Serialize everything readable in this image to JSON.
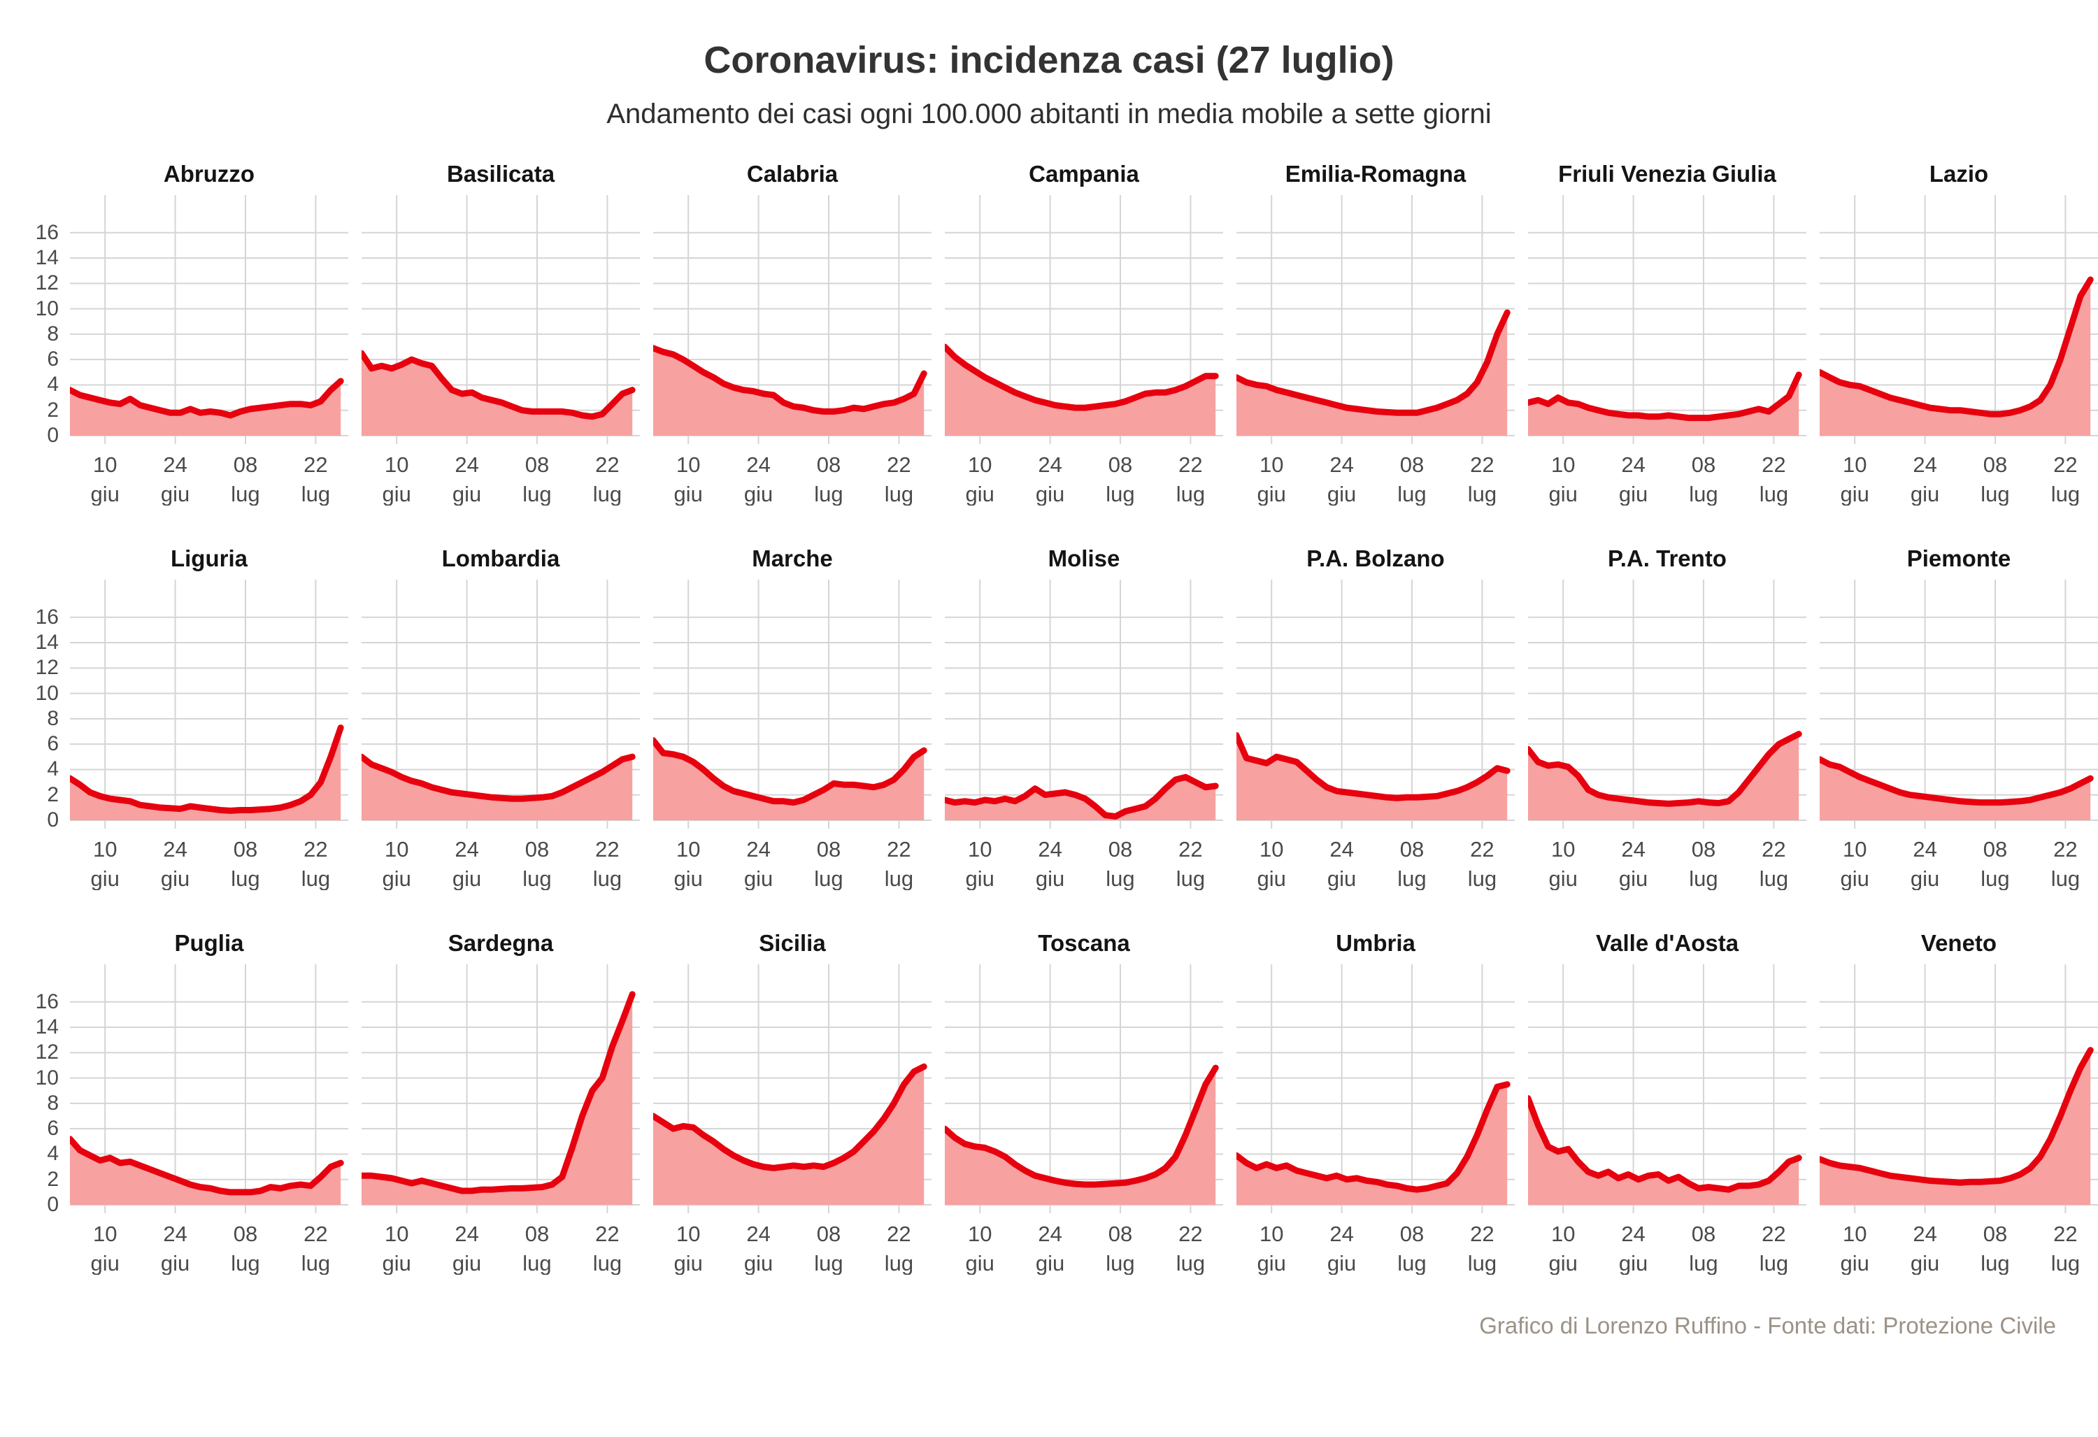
{
  "title": "Coronavirus: incidenza casi (27 luglio)",
  "subtitle": "Andamento dei casi ogni 100.000 abitanti in media mobile a sette giorni",
  "footer": "Grafico di Lorenzo Ruffino - Fonte dati: Protezione Civile",
  "colors": {
    "line": "#e7000e",
    "fill": "#f7a1a1",
    "grid": "#d5d5d5",
    "axis_text": "#4a4a4a",
    "footer_text": "#9b9286"
  },
  "chart_data": {
    "type": "area",
    "title": "Coronavirus: incidenza casi (27 luglio)",
    "subtitle": "Andamento dei casi ogni 100.000 abitanti in media mobile a sette giorni",
    "ylabel": "",
    "xlabel": "",
    "ylim": [
      0,
      17.2
    ],
    "xlim_days": [
      0,
      55.5
    ],
    "y_ticks": [
      0,
      2,
      4,
      6,
      8,
      10,
      12,
      14,
      16
    ],
    "x_ticks": [
      {
        "top": "10",
        "bottom": "giu",
        "day": 7
      },
      {
        "top": "24",
        "bottom": "giu",
        "day": 21
      },
      {
        "top": "08",
        "bottom": "lug",
        "day": 35
      },
      {
        "top": "22",
        "bottom": "lug",
        "day": 49
      }
    ],
    "x_start": "03 giu",
    "x_end": "27 lug",
    "sample_interval_days": 2,
    "grid": true,
    "legend": "none",
    "series": [
      {
        "name": "Abruzzo",
        "values": [
          3.6,
          3.2,
          3.0,
          2.8,
          2.6,
          2.5,
          2.9,
          2.4,
          2.2,
          2.0,
          1.8,
          1.8,
          2.1,
          1.8,
          1.9,
          1.8,
          1.6,
          1.9,
          2.1,
          2.2,
          2.3,
          2.4,
          2.5,
          2.5,
          2.4,
          2.7,
          3.6,
          4.3
        ]
      },
      {
        "name": "Basilicata",
        "values": [
          6.5,
          5.3,
          5.5,
          5.3,
          5.6,
          6.0,
          5.7,
          5.5,
          4.5,
          3.6,
          3.3,
          3.4,
          3.0,
          2.8,
          2.6,
          2.3,
          2.0,
          1.9,
          1.9,
          1.9,
          1.9,
          1.8,
          1.6,
          1.5,
          1.7,
          2.5,
          3.3,
          3.6
        ]
      },
      {
        "name": "Calabria",
        "values": [
          6.9,
          6.6,
          6.4,
          6.0,
          5.5,
          5.0,
          4.6,
          4.1,
          3.8,
          3.6,
          3.5,
          3.3,
          3.2,
          2.6,
          2.3,
          2.2,
          2.0,
          1.9,
          1.9,
          2.0,
          2.2,
          2.1,
          2.3,
          2.5,
          2.6,
          2.9,
          3.3,
          4.9
        ]
      },
      {
        "name": "Campania",
        "values": [
          7.0,
          6.2,
          5.6,
          5.1,
          4.6,
          4.2,
          3.8,
          3.4,
          3.1,
          2.8,
          2.6,
          2.4,
          2.3,
          2.2,
          2.2,
          2.3,
          2.4,
          2.5,
          2.7,
          3.0,
          3.3,
          3.4,
          3.4,
          3.6,
          3.9,
          4.3,
          4.7,
          4.7
        ]
      },
      {
        "name": "Emilia-Romagna",
        "values": [
          4.6,
          4.2,
          4.0,
          3.9,
          3.6,
          3.4,
          3.2,
          3.0,
          2.8,
          2.6,
          2.4,
          2.2,
          2.1,
          2.0,
          1.9,
          1.85,
          1.8,
          1.8,
          1.8,
          2.0,
          2.2,
          2.5,
          2.8,
          3.3,
          4.2,
          5.8,
          8.0,
          9.7
        ]
      },
      {
        "name": "Friuli Venezia Giulia",
        "values": [
          2.6,
          2.8,
          2.5,
          3.0,
          2.6,
          2.5,
          2.2,
          2.0,
          1.8,
          1.7,
          1.6,
          1.6,
          1.5,
          1.5,
          1.6,
          1.5,
          1.4,
          1.4,
          1.4,
          1.5,
          1.6,
          1.7,
          1.9,
          2.1,
          1.9,
          2.5,
          3.1,
          4.8
        ]
      },
      {
        "name": "Lazio",
        "values": [
          5.0,
          4.6,
          4.2,
          4.0,
          3.9,
          3.6,
          3.3,
          3.0,
          2.8,
          2.6,
          2.4,
          2.2,
          2.1,
          2.0,
          2.0,
          1.9,
          1.8,
          1.7,
          1.7,
          1.8,
          2.0,
          2.3,
          2.8,
          4.0,
          6.0,
          8.5,
          11.0,
          12.3
        ]
      },
      {
        "name": "Liguria",
        "values": [
          3.3,
          2.8,
          2.2,
          1.9,
          1.7,
          1.6,
          1.5,
          1.2,
          1.1,
          1.0,
          0.95,
          0.9,
          1.1,
          1.0,
          0.9,
          0.8,
          0.75,
          0.8,
          0.8,
          0.85,
          0.9,
          1.0,
          1.2,
          1.5,
          2.0,
          3.0,
          5.0,
          7.3
        ]
      },
      {
        "name": "Lombardia",
        "values": [
          5.0,
          4.4,
          4.1,
          3.8,
          3.4,
          3.1,
          2.9,
          2.6,
          2.4,
          2.2,
          2.1,
          2.0,
          1.9,
          1.8,
          1.75,
          1.7,
          1.7,
          1.75,
          1.8,
          1.9,
          2.2,
          2.6,
          3.0,
          3.4,
          3.8,
          4.3,
          4.8,
          5.0
        ]
      },
      {
        "name": "Marche",
        "values": [
          6.3,
          5.3,
          5.2,
          5.0,
          4.6,
          4.0,
          3.3,
          2.7,
          2.3,
          2.1,
          1.9,
          1.7,
          1.5,
          1.5,
          1.4,
          1.6,
          2.0,
          2.4,
          2.9,
          2.8,
          2.8,
          2.7,
          2.6,
          2.8,
          3.2,
          4.0,
          5.0,
          5.5
        ]
      },
      {
        "name": "Molise",
        "values": [
          1.6,
          1.4,
          1.5,
          1.4,
          1.6,
          1.5,
          1.7,
          1.5,
          1.9,
          2.5,
          2.0,
          2.1,
          2.2,
          2.0,
          1.7,
          1.1,
          0.4,
          0.3,
          0.7,
          0.9,
          1.1,
          1.7,
          2.5,
          3.2,
          3.4,
          3.0,
          2.6,
          2.7
        ]
      },
      {
        "name": "P.A. Bolzano",
        "values": [
          6.7,
          4.9,
          4.7,
          4.5,
          5.0,
          4.8,
          4.6,
          3.9,
          3.2,
          2.6,
          2.3,
          2.2,
          2.1,
          2.0,
          1.9,
          1.8,
          1.75,
          1.8,
          1.8,
          1.85,
          1.9,
          2.1,
          2.3,
          2.6,
          3.0,
          3.5,
          4.1,
          3.9
        ]
      },
      {
        "name": "P.A. Trento",
        "values": [
          5.6,
          4.6,
          4.3,
          4.4,
          4.2,
          3.5,
          2.4,
          2.0,
          1.8,
          1.7,
          1.6,
          1.5,
          1.4,
          1.35,
          1.3,
          1.35,
          1.4,
          1.5,
          1.4,
          1.35,
          1.5,
          2.2,
          3.2,
          4.2,
          5.2,
          6.0,
          6.4,
          6.8
        ]
      },
      {
        "name": "Piemonte",
        "values": [
          4.8,
          4.4,
          4.2,
          3.8,
          3.4,
          3.1,
          2.8,
          2.5,
          2.2,
          2.0,
          1.9,
          1.8,
          1.7,
          1.6,
          1.5,
          1.45,
          1.4,
          1.4,
          1.4,
          1.45,
          1.5,
          1.6,
          1.8,
          2.0,
          2.2,
          2.5,
          2.9,
          3.3
        ]
      },
      {
        "name": "Puglia",
        "values": [
          5.2,
          4.3,
          3.9,
          3.5,
          3.7,
          3.3,
          3.4,
          3.1,
          2.8,
          2.5,
          2.2,
          1.9,
          1.6,
          1.4,
          1.3,
          1.1,
          1.0,
          1.0,
          1.0,
          1.1,
          1.4,
          1.3,
          1.5,
          1.6,
          1.5,
          2.2,
          3.0,
          3.3
        ]
      },
      {
        "name": "Sardegna",
        "values": [
          2.3,
          2.3,
          2.2,
          2.1,
          1.9,
          1.7,
          1.9,
          1.7,
          1.5,
          1.3,
          1.1,
          1.1,
          1.2,
          1.2,
          1.25,
          1.3,
          1.3,
          1.35,
          1.4,
          1.6,
          2.2,
          4.5,
          7.0,
          9.0,
          10.0,
          12.5,
          14.5,
          16.6
        ]
      },
      {
        "name": "Sicilia",
        "values": [
          7.0,
          6.5,
          6.0,
          6.2,
          6.1,
          5.5,
          5.0,
          4.4,
          3.9,
          3.5,
          3.2,
          3.0,
          2.9,
          3.0,
          3.1,
          3.0,
          3.1,
          3.0,
          3.3,
          3.7,
          4.2,
          5.0,
          5.8,
          6.8,
          8.0,
          9.5,
          10.5,
          10.9
        ]
      },
      {
        "name": "Toscana",
        "values": [
          6.0,
          5.3,
          4.8,
          4.6,
          4.5,
          4.2,
          3.8,
          3.2,
          2.7,
          2.3,
          2.1,
          1.9,
          1.75,
          1.65,
          1.6,
          1.6,
          1.65,
          1.7,
          1.75,
          1.9,
          2.1,
          2.4,
          2.9,
          3.8,
          5.5,
          7.5,
          9.5,
          10.8
        ]
      },
      {
        "name": "Umbria",
        "values": [
          3.9,
          3.3,
          2.9,
          3.2,
          2.9,
          3.1,
          2.7,
          2.5,
          2.3,
          2.1,
          2.3,
          2.0,
          2.1,
          1.9,
          1.8,
          1.6,
          1.5,
          1.3,
          1.2,
          1.3,
          1.5,
          1.7,
          2.5,
          3.8,
          5.5,
          7.5,
          9.3,
          9.5
        ]
      },
      {
        "name": "Valle d'Aosta",
        "values": [
          8.4,
          6.3,
          4.6,
          4.2,
          4.4,
          3.4,
          2.6,
          2.3,
          2.6,
          2.1,
          2.4,
          2.0,
          2.3,
          2.4,
          1.9,
          2.2,
          1.7,
          1.3,
          1.4,
          1.3,
          1.2,
          1.5,
          1.5,
          1.6,
          1.9,
          2.6,
          3.4,
          3.7
        ]
      },
      {
        "name": "Veneto",
        "values": [
          3.6,
          3.3,
          3.1,
          3.0,
          2.9,
          2.7,
          2.5,
          2.3,
          2.2,
          2.1,
          2.0,
          1.9,
          1.85,
          1.8,
          1.75,
          1.8,
          1.8,
          1.85,
          1.9,
          2.1,
          2.4,
          2.9,
          3.8,
          5.2,
          7.0,
          9.0,
          10.8,
          12.2
        ]
      }
    ]
  }
}
